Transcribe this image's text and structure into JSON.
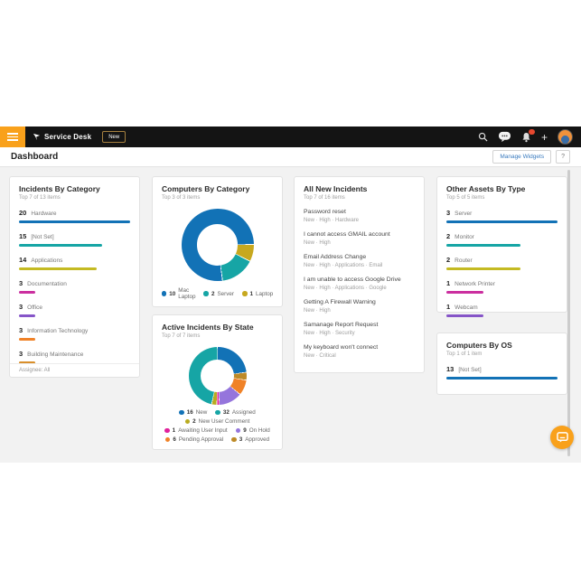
{
  "topbar": {
    "product_name": "Service Desk",
    "new_button_label": "New"
  },
  "header": {
    "title": "Dashboard",
    "manage_widgets_label": "Manage Widgets",
    "help_label": "?"
  },
  "colors": {
    "accent_orange": "#f9a11b",
    "link_blue": "#3a7bbf",
    "notification_red": "#e8482f"
  },
  "widgets": {
    "incidents_by_category": {
      "title": "Incidents By Category",
      "subtitle": "Top 7 of 13 items",
      "footer": "Assignee: All",
      "max": 20,
      "items": [
        {
          "value": 20,
          "label": "Hardware",
          "color": "#1272b6"
        },
        {
          "value": 15,
          "label": "[Not Set]",
          "color": "#16a5a5"
        },
        {
          "value": 14,
          "label": "Applications",
          "color": "#c4ba22"
        },
        {
          "value": 3,
          "label": "Documentation",
          "color": "#cb2f9f"
        },
        {
          "value": 3,
          "label": "Office",
          "color": "#8655c8"
        },
        {
          "value": 3,
          "label": "Information Technology",
          "color": "#f08228"
        },
        {
          "value": 3,
          "label": "Building Maintenance",
          "color": "#d98f2b"
        }
      ]
    },
    "computers_by_category": {
      "title": "Computers By Category",
      "subtitle": "Top 3 of 3 items",
      "donut": {
        "start_deg": 90,
        "segments": [
          {
            "label": "Laptop",
            "value": 1,
            "color": "#c7a81f"
          },
          {
            "label": "Server",
            "value": 2,
            "color": "#16a5a5"
          },
          {
            "label": "Mac Laptop",
            "value": 10,
            "color": "#1272b6"
          }
        ]
      },
      "legend_rows": [
        [
          {
            "value": 10,
            "label": "Mac Laptop",
            "color": "#1272b6"
          },
          {
            "value": 2,
            "label": "Server",
            "color": "#16a5a5"
          },
          {
            "value": 1,
            "label": "Laptop",
            "color": "#c7a81f"
          }
        ]
      ]
    },
    "active_incidents_by_state": {
      "title": "Active Incidents By State",
      "subtitle": "Top 7 of 7 items",
      "donut": {
        "start_deg": 0,
        "segments": [
          {
            "label": "New",
            "value": 16,
            "color": "#1272b6"
          },
          {
            "label": "Approved",
            "value": 3,
            "color": "#bd8a28"
          },
          {
            "label": "Pending Approval",
            "value": 6,
            "color": "#f08228"
          },
          {
            "label": "On Hold",
            "value": 9,
            "color": "#9575dc"
          },
          {
            "label": "Awaiting User Input",
            "value": 1,
            "color": "#e0219c"
          },
          {
            "label": "New User Comment",
            "value": 2,
            "color": "#b9ab20"
          },
          {
            "label": "Assigned",
            "value": 32,
            "color": "#16a5a5"
          }
        ]
      },
      "legend_rows": [
        [
          {
            "value": 16,
            "label": "New",
            "color": "#1272b6"
          },
          {
            "value": 32,
            "label": "Assigned",
            "color": "#16a5a5"
          }
        ],
        [
          {
            "value": 2,
            "label": "New User Comment",
            "color": "#b9ab20"
          }
        ],
        [
          {
            "value": 1,
            "label": "Awaiting User Input",
            "color": "#e0219c"
          },
          {
            "value": 9,
            "label": "On Hold",
            "color": "#9575dc"
          }
        ],
        [
          {
            "value": 6,
            "label": "Pending Approval",
            "color": "#f08228"
          },
          {
            "value": 3,
            "label": "Approved",
            "color": "#bd8a28"
          }
        ]
      ]
    },
    "all_new_incidents": {
      "title": "All New Incidents",
      "subtitle": "Top 7 of 16 items",
      "items": [
        {
          "title": "Password reset",
          "meta": [
            "New",
            "High",
            "Hardware"
          ]
        },
        {
          "title": "I cannot access GMAIL account",
          "meta": [
            "New",
            "High"
          ]
        },
        {
          "title": "Email Address Change",
          "meta": [
            "New",
            "High",
            "Applications",
            "Email"
          ]
        },
        {
          "title": "I am unable to access Google Drive",
          "meta": [
            "New",
            "High",
            "Applications",
            "Google"
          ]
        },
        {
          "title": "Getting A Firewall Warning",
          "meta": [
            "New",
            "High"
          ]
        },
        {
          "title": "Samanage Report Request",
          "meta": [
            "New",
            "High",
            "Security"
          ]
        },
        {
          "title": "My keyboard won't connect",
          "meta": [
            "New",
            "Critical"
          ]
        }
      ]
    },
    "other_assets_by_type": {
      "title": "Other Assets By Type",
      "subtitle": "Top 5 of 5 items",
      "max": 3,
      "items": [
        {
          "value": 3,
          "label": "Server",
          "color": "#1272b6"
        },
        {
          "value": 2,
          "label": "Monitor",
          "color": "#16a5a5"
        },
        {
          "value": 2,
          "label": "Router",
          "color": "#c4ba22"
        },
        {
          "value": 1,
          "label": "Network Printer",
          "color": "#cb2f9f"
        },
        {
          "value": 1,
          "label": "Webcam",
          "color": "#8655c8"
        }
      ]
    },
    "computers_by_os": {
      "title": "Computers By OS",
      "subtitle": "Top 1 of 1 item",
      "max": 13,
      "items": [
        {
          "value": 13,
          "label": "[Not Set]",
          "color": "#1272b6"
        }
      ]
    }
  },
  "chart_data": [
    {
      "type": "bar",
      "title": "Incidents By Category",
      "subtitle": "Top 7 of 13 items",
      "categories": [
        "Hardware",
        "[Not Set]",
        "Applications",
        "Documentation",
        "Office",
        "Information Technology",
        "Building Maintenance"
      ],
      "values": [
        20,
        15,
        14,
        3,
        3,
        3,
        3
      ]
    },
    {
      "type": "pie",
      "title": "Computers By Category",
      "subtitle": "Top 3 of 3 items",
      "labels": [
        "Mac Laptop",
        "Server",
        "Laptop"
      ],
      "values": [
        10,
        2,
        1
      ]
    },
    {
      "type": "pie",
      "title": "Active Incidents By State",
      "subtitle": "Top 7 of 7 items",
      "labels": [
        "New",
        "Assigned",
        "New User Comment",
        "Awaiting User Input",
        "On Hold",
        "Pending Approval",
        "Approved"
      ],
      "values": [
        16,
        32,
        2,
        1,
        9,
        6,
        3
      ]
    },
    {
      "type": "bar",
      "title": "Other Assets By Type",
      "subtitle": "Top 5 of 5 items",
      "categories": [
        "Server",
        "Monitor",
        "Router",
        "Network Printer",
        "Webcam"
      ],
      "values": [
        3,
        2,
        2,
        1,
        1
      ]
    },
    {
      "type": "bar",
      "title": "Computers By OS",
      "subtitle": "Top 1 of 1 item",
      "categories": [
        "[Not Set]"
      ],
      "values": [
        13
      ]
    }
  ]
}
